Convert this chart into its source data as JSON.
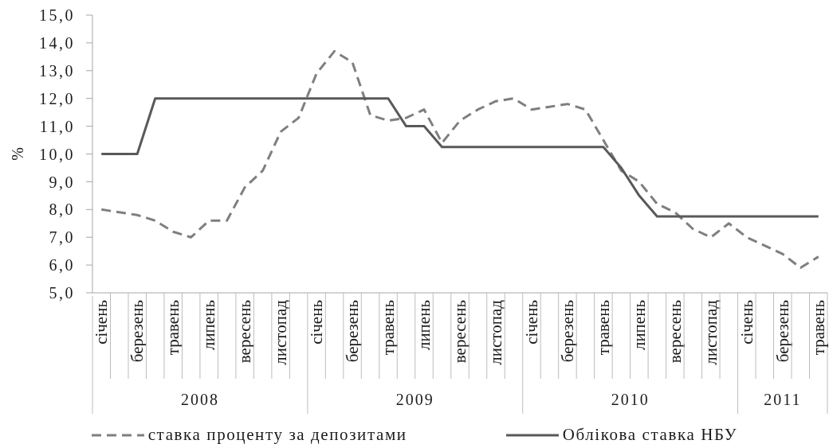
{
  "chart_data": {
    "type": "line",
    "ylabel": "%",
    "categories": [
      "січень",
      null,
      "березень",
      null,
      "травень",
      null,
      "липень",
      null,
      "вересень",
      null,
      "листопад",
      null,
      "січень",
      null,
      "березень",
      null,
      "травень",
      null,
      "липень",
      null,
      "вересень",
      null,
      "листопад",
      null,
      "січень",
      null,
      "березень",
      null,
      "травень",
      null,
      "липень",
      null,
      "вересень",
      null,
      "листопад",
      null,
      "січень",
      null,
      "березень",
      null,
      "травень"
    ],
    "series": [
      {
        "name": "ставка проценту за депозитами",
        "color": "#7f7f7f",
        "line_style": "dashed",
        "values": [
          8.0,
          7.9,
          7.8,
          7.6,
          7.2,
          7.0,
          7.6,
          7.6,
          8.8,
          9.4,
          10.8,
          11.3,
          12.9,
          13.7,
          13.3,
          11.4,
          11.2,
          11.3,
          11.6,
          10.4,
          11.2,
          11.6,
          11.9,
          12.0,
          11.6,
          11.7,
          11.8,
          11.6,
          10.5,
          9.4,
          9.0,
          8.2,
          7.9,
          7.3,
          7.0,
          7.5,
          7.0,
          6.7,
          6.4,
          5.9,
          6.3
        ]
      },
      {
        "name": "Облікова ставка НБУ",
        "color": "#595959",
        "line_style": "solid",
        "values": [
          10,
          10,
          10,
          12,
          12,
          12,
          12,
          12,
          12,
          12,
          12,
          12,
          12,
          12,
          12,
          12,
          12,
          11,
          11,
          10.25,
          10.25,
          10.25,
          10.25,
          10.25,
          10.25,
          10.25,
          10.25,
          10.25,
          10.25,
          9.5,
          8.5,
          7.75,
          7.75,
          7.75,
          7.75,
          7.75,
          7.75,
          7.75,
          7.75,
          7.75,
          7.75
        ]
      }
    ],
    "ylim": [
      5,
      15
    ],
    "yticks": [
      {
        "value": 5,
        "label": "5,0"
      },
      {
        "value": 6,
        "label": "6,0"
      },
      {
        "value": 7,
        "label": "7,0"
      },
      {
        "value": 8,
        "label": "8,0"
      },
      {
        "value": 9,
        "label": "9,0"
      },
      {
        "value": 10,
        "label": "10,0"
      },
      {
        "value": 11,
        "label": "11,0"
      },
      {
        "value": 12,
        "label": "12,0"
      },
      {
        "value": 13,
        "label": "13,0"
      },
      {
        "value": 14,
        "label": "14,0"
      },
      {
        "value": 15,
        "label": "15,0"
      }
    ],
    "legend": "bottom",
    "annotations": [
      "2008",
      "2009",
      "2010",
      "2011"
    ]
  }
}
